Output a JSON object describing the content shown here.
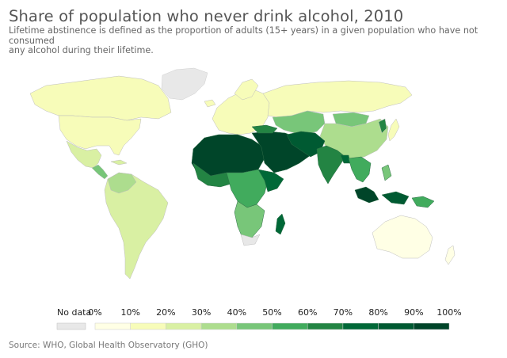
{
  "title": "Share of population who never drink alcohol, 2010",
  "subtitle_line1": "Lifetime abstinence is defined as the proportion of adults (15+ years) in a given population who have not consumed",
  "subtitle_line2": "any alcohol during their lifetime.",
  "source": "Source: WHO, Global Health Observatory (GHO)",
  "legend": {
    "no_data_label": "No data",
    "no_data_color": "#e8e8e8",
    "ticks": [
      "0%",
      "10%",
      "20%",
      "30%",
      "40%",
      "50%",
      "60%",
      "70%",
      "80%",
      "90%",
      "100%"
    ],
    "bins": [
      {
        "range": "0-10%",
        "color": "#ffffe5"
      },
      {
        "range": "10-20%",
        "color": "#f7fcb9"
      },
      {
        "range": "20-30%",
        "color": "#d9f0a3"
      },
      {
        "range": "30-40%",
        "color": "#addd8e"
      },
      {
        "range": "40-50%",
        "color": "#78c679"
      },
      {
        "range": "50-60%",
        "color": "#41ab5d"
      },
      {
        "range": "60-70%",
        "color": "#238443"
      },
      {
        "range": "70-80%",
        "color": "#006837"
      },
      {
        "range": "80-90%",
        "color": "#005a32"
      },
      {
        "range": "90-100%",
        "color": "#004529"
      }
    ]
  },
  "regions": [
    {
      "name": "Greenland",
      "bin": "no-data"
    },
    {
      "name": "North America",
      "bin": "10-20%"
    },
    {
      "name": "Central America & Caribbean",
      "bin": "20-40%"
    },
    {
      "name": "South America",
      "bin": "20-30%"
    },
    {
      "name": "Europe",
      "bin": "10-20%"
    },
    {
      "name": "Russia & Central Asia",
      "bin": "10-20%"
    },
    {
      "name": "China",
      "bin": "30-40%"
    },
    {
      "name": "North Africa & Middle East",
      "bin": "80-100%"
    },
    {
      "name": "Sub-Saharan Africa",
      "bin": "40-70%"
    },
    {
      "name": "South Asia",
      "bin": "70-90%"
    },
    {
      "name": "Southeast Asia",
      "bin": "60-90%"
    },
    {
      "name": "Australia",
      "bin": "0-10%"
    }
  ]
}
